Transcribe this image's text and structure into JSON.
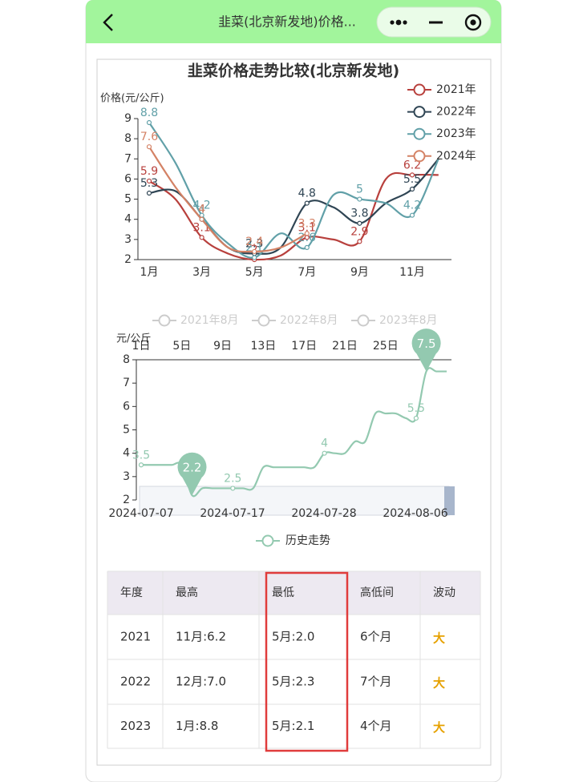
{
  "header": {
    "title": "韭菜(北京新发地)价格..."
  },
  "chart_data": [
    {
      "type": "line",
      "title": "韭菜价格走势比较(北京新发地)",
      "y_label": "价格(元/公斤)",
      "categories": [
        "1月",
        null,
        "3月",
        null,
        "5月",
        null,
        "7月",
        null,
        "9月",
        null,
        "11月",
        null
      ],
      "series": [
        {
          "name": "2021年",
          "color": "#b8403d",
          "values": [
            5.9,
            5.0,
            3.1,
            2.3,
            2.0,
            2.2,
            3.1,
            3.0,
            2.9,
            6.0,
            6.2,
            6.2
          ]
        },
        {
          "name": "2022年",
          "color": "#2f4554",
          "values": [
            5.3,
            5.4,
            4.0,
            2.6,
            2.3,
            2.6,
            4.8,
            4.6,
            3.8,
            4.8,
            5.5,
            7.0
          ]
        },
        {
          "name": "2023年",
          "color": "#61a0a8",
          "values": [
            8.8,
            6.8,
            4.2,
            2.8,
            2.1,
            3.3,
            2.6,
            5.2,
            5.0,
            4.8,
            4.2,
            7.0
          ]
        },
        {
          "name": "2024年",
          "color": "#d48265",
          "values": [
            7.6,
            5.6,
            4.0,
            2.6,
            2.4,
            2.6,
            3.3,
            null,
            null,
            null,
            null,
            null
          ]
        }
      ],
      "ylim": [
        2,
        9
      ],
      "yticks": [
        2,
        3,
        4,
        5,
        6,
        7,
        8,
        9
      ],
      "legend": "top-right"
    },
    {
      "type": "line",
      "y_label": "元/公斤",
      "legend_inactive": [
        "2021年8月",
        "2022年8月",
        "2023年8月"
      ],
      "categories": [
        "1日",
        null,
        null,
        null,
        "5日",
        null,
        null,
        null,
        "9日",
        null,
        null,
        null,
        "13日",
        null,
        null,
        null,
        "17日",
        null,
        null,
        null,
        "21日",
        null,
        null,
        null,
        "25日",
        null,
        null,
        null,
        null,
        null,
        null
      ],
      "series": [
        {
          "name": "历史走势",
          "color": "#93c9b0",
          "values": [
            3.5,
            3.5,
            3.5,
            3.5,
            3.5,
            2.2,
            2.5,
            2.5,
            2.5,
            2.5,
            2.5,
            2.5,
            3.4,
            3.4,
            3.4,
            3.4,
            3.4,
            3.4,
            4.0,
            4.0,
            4.0,
            4.5,
            4.5,
            5.7,
            5.7,
            5.7,
            5.5,
            5.5,
            7.5,
            7.5,
            7.5
          ]
        }
      ],
      "mark_points": [
        {
          "index": 28,
          "value": 7.5
        },
        {
          "index": 5,
          "value": 2.2
        }
      ],
      "zoom_labels": [
        "2024-07-07",
        "2024-07-17",
        "2024-07-28",
        "2024-08-06"
      ],
      "ylim": [
        2,
        8
      ],
      "yticks": [
        2,
        3,
        4,
        5,
        6,
        7,
        8
      ],
      "legend": "bottom"
    }
  ],
  "table": {
    "header": [
      "年度",
      "最高",
      "最低",
      "高低间",
      "波动"
    ],
    "rows": [
      [
        "2021",
        "11月:6.2",
        "5月:2.0",
        "6个月",
        "大"
      ],
      [
        "2022",
        "12月:7.0",
        "5月:2.3",
        "7个月",
        "大"
      ],
      [
        "2023",
        "1月:8.8",
        "5月:2.1",
        "4个月",
        "大"
      ]
    ]
  }
}
